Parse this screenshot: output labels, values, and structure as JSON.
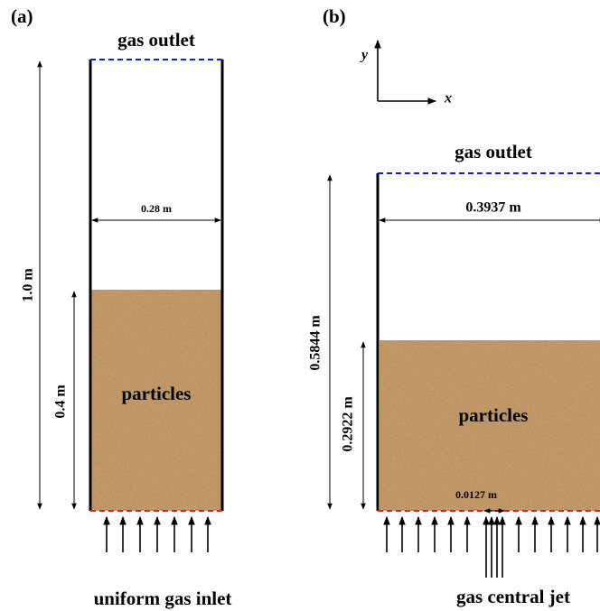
{
  "panel_a": {
    "label": "(a)",
    "outlet": "gas outlet",
    "width": "0.28 m",
    "height": "1.0 m",
    "bed_height": "0.4 m",
    "particles": "particles",
    "inlet": "uniform gas inlet"
  },
  "panel_b": {
    "label": "(b)",
    "axis_y": "y",
    "axis_x": "x",
    "outlet": "gas outlet",
    "width": "0.3937 m",
    "height": "0.5844 m",
    "bed_height": "0.2922 m",
    "particles": "particles",
    "jet_width": "0.0127 m",
    "inlet": "gas central jet"
  }
}
